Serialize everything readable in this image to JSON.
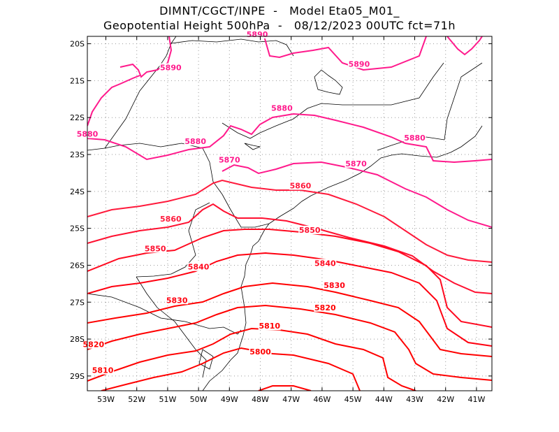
{
  "title_line_1": "DIMNT/CGCT/INPE  -   Model Eta05_M01_",
  "title_line_2": "Geopotential Height 500hPa  -   08/12/2023 00UTC fct=71h",
  "map": {
    "lon_range": [
      -53.6,
      -40.5
    ],
    "lat_range": [
      -29.4,
      -19.8
    ],
    "lon_ticks": [
      "53W",
      "52W",
      "51W",
      "50W",
      "49W",
      "48W",
      "47W",
      "46W",
      "45W",
      "44W",
      "43W",
      "42W",
      "41W"
    ],
    "lat_ticks": [
      "20S",
      "21S",
      "22S",
      "23S",
      "24S",
      "25S",
      "26S",
      "27S",
      "28S",
      "29S"
    ],
    "grid": "dotted",
    "colors": {
      "border": "#000000",
      "grid": "#9a9a9a",
      "contour_high": "#ff1a8c",
      "contour_low": "#ff0000"
    }
  },
  "contours": [
    {
      "level": "5890",
      "color": "#ff1a8c",
      "labels": [
        "5890",
        "5890",
        "5890"
      ]
    },
    {
      "level": "5880",
      "color": "#ff1a8c",
      "labels": [
        "5880",
        "5880",
        "5880",
        "5880"
      ]
    },
    {
      "level": "5870",
      "color": "#ff1a8c",
      "labels": [
        "5870",
        "5870"
      ]
    },
    {
      "level": "5860",
      "color": "#ff1a3c",
      "labels": [
        "5860",
        "5860"
      ]
    },
    {
      "level": "5850",
      "color": "#ff1030",
      "labels": [
        "5850",
        "5850"
      ]
    },
    {
      "level": "5840",
      "color": "#ff0a20",
      "labels": [
        "5840",
        "5840"
      ]
    },
    {
      "level": "5830",
      "color": "#ff0010",
      "labels": [
        "5830",
        "5830"
      ]
    },
    {
      "level": "5820",
      "color": "#ff0000",
      "labels": [
        "5820",
        "5820"
      ]
    },
    {
      "level": "5810",
      "color": "#ff0000",
      "labels": [
        "5810",
        "5810"
      ]
    },
    {
      "level": "5800",
      "color": "#ff0000",
      "labels": [
        "5800"
      ]
    }
  ]
}
